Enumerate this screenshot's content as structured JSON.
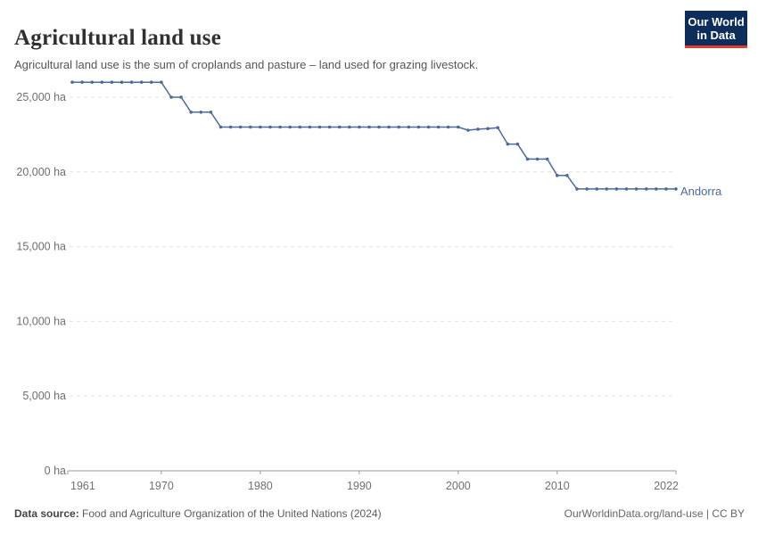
{
  "header": {
    "title": "Agricultural land use",
    "subtitle": "Agricultural land use is the sum of croplands and pasture – land used for grazing livestock.",
    "logo": {
      "line1": "Our World",
      "line2": "in Data",
      "bg_color": "#0D2E5A",
      "accent_color": "#E23D2E"
    }
  },
  "chart_data": {
    "type": "line",
    "title": "Agricultural land use",
    "entity_label": "Andorra",
    "unit": "ha",
    "line_color": "#4C6A9C",
    "grid": "horizontal-dashed",
    "legend_position": "end-of-line",
    "x_range": [
      1961,
      2022
    ],
    "ylim": [
      0,
      26000
    ],
    "y_ticks": [
      {
        "v": 0,
        "label": "0 ha"
      },
      {
        "v": 5000,
        "label": "5,000 ha"
      },
      {
        "v": 10000,
        "label": "10,000 ha"
      },
      {
        "v": 15000,
        "label": "15,000 ha"
      },
      {
        "v": 20000,
        "label": "20,000 ha"
      },
      {
        "v": 25000,
        "label": "25,000 ha"
      }
    ],
    "x_ticks": [
      {
        "v": 1961,
        "label": "1961"
      },
      {
        "v": 1970,
        "label": "1970"
      },
      {
        "v": 1980,
        "label": "1980"
      },
      {
        "v": 1990,
        "label": "1990"
      },
      {
        "v": 2000,
        "label": "2000"
      },
      {
        "v": 2010,
        "label": "2010"
      },
      {
        "v": 2022,
        "label": "2022"
      }
    ],
    "series": [
      {
        "name": "Andorra",
        "color": "#4C6A9C",
        "points": [
          [
            1961,
            26000
          ],
          [
            1962,
            26000
          ],
          [
            1963,
            26000
          ],
          [
            1964,
            26000
          ],
          [
            1965,
            26000
          ],
          [
            1966,
            26000
          ],
          [
            1967,
            26000
          ],
          [
            1968,
            26000
          ],
          [
            1969,
            26000
          ],
          [
            1970,
            26000
          ],
          [
            1971,
            25000
          ],
          [
            1972,
            25000
          ],
          [
            1973,
            24000
          ],
          [
            1974,
            24000
          ],
          [
            1975,
            24000
          ],
          [
            1976,
            23000
          ],
          [
            1977,
            23000
          ],
          [
            1978,
            23000
          ],
          [
            1979,
            23000
          ],
          [
            1980,
            23000
          ],
          [
            1981,
            23000
          ],
          [
            1982,
            23000
          ],
          [
            1983,
            23000
          ],
          [
            1984,
            23000
          ],
          [
            1985,
            23000
          ],
          [
            1986,
            23000
          ],
          [
            1987,
            23000
          ],
          [
            1988,
            23000
          ],
          [
            1989,
            23000
          ],
          [
            1990,
            23000
          ],
          [
            1991,
            23000
          ],
          [
            1992,
            23000
          ],
          [
            1993,
            23000
          ],
          [
            1994,
            23000
          ],
          [
            1995,
            23000
          ],
          [
            1996,
            23000
          ],
          [
            1997,
            23000
          ],
          [
            1998,
            23000
          ],
          [
            1999,
            23000
          ],
          [
            2000,
            23000
          ],
          [
            2001,
            22790
          ],
          [
            2002,
            22860
          ],
          [
            2003,
            22900
          ],
          [
            2004,
            22960
          ],
          [
            2005,
            21860
          ],
          [
            2006,
            21860
          ],
          [
            2007,
            20860
          ],
          [
            2008,
            20860
          ],
          [
            2009,
            20860
          ],
          [
            2010,
            19760
          ],
          [
            2011,
            19760
          ],
          [
            2012,
            18860
          ],
          [
            2013,
            18860
          ],
          [
            2014,
            18860
          ],
          [
            2015,
            18860
          ],
          [
            2016,
            18860
          ],
          [
            2017,
            18860
          ],
          [
            2018,
            18860
          ],
          [
            2019,
            18860
          ],
          [
            2020,
            18860
          ],
          [
            2021,
            18860
          ],
          [
            2022,
            18860
          ]
        ]
      }
    ]
  },
  "footer": {
    "source_label": "Data source:",
    "source_text": "Food and Agriculture Organization of the United Nations (2024)",
    "link": "OurWorldinData.org/land-use",
    "separator": " | ",
    "license": "CC BY"
  }
}
